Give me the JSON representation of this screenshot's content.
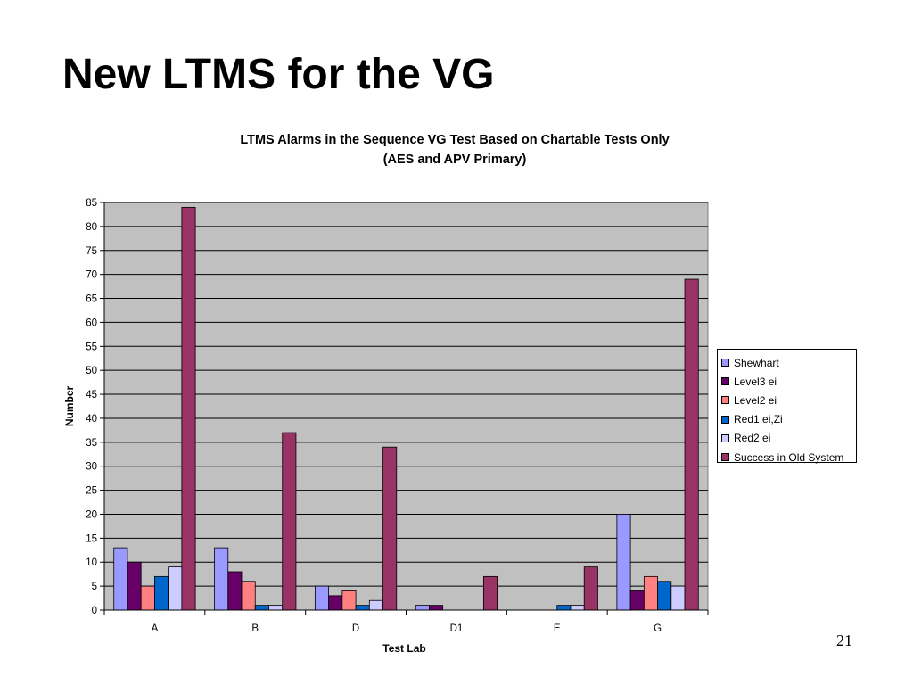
{
  "slide": {
    "title": "New LTMS for the VG",
    "page_number": "21"
  },
  "chart_data": {
    "type": "bar",
    "title": "LTMS Alarms in the Sequence VG Test Based on Chartable Tests Only",
    "subtitle": "(AES and APV Primary)",
    "xlabel": "Test Lab",
    "ylabel": "Number",
    "ylim": [
      0,
      85
    ],
    "ytick_step": 5,
    "grid": true,
    "legend_position": "right",
    "plot_background": "#c0c0c0",
    "categories": [
      "A",
      "B",
      "D",
      "D1",
      "E",
      "G"
    ],
    "series": [
      {
        "name": "Shewhart",
        "color": "#9999ff",
        "values": [
          13,
          13,
          5,
          1,
          0,
          20
        ]
      },
      {
        "name": "Level3 ei",
        "color": "#660066",
        "values": [
          10,
          8,
          3,
          1,
          0,
          4
        ]
      },
      {
        "name": "Level2 ei",
        "color": "#ff8080",
        "values": [
          5,
          6,
          4,
          0,
          0,
          7
        ]
      },
      {
        "name": "Red1 ei,Zi",
        "color": "#0066cc",
        "values": [
          7,
          1,
          1,
          0,
          1,
          6
        ]
      },
      {
        "name": "Red2 ei",
        "color": "#ccccff",
        "values": [
          9,
          1,
          2,
          0,
          1,
          5
        ]
      },
      {
        "name": "Success in Old System",
        "color": "#993366",
        "values": [
          84,
          37,
          34,
          7,
          9,
          69
        ]
      }
    ]
  }
}
